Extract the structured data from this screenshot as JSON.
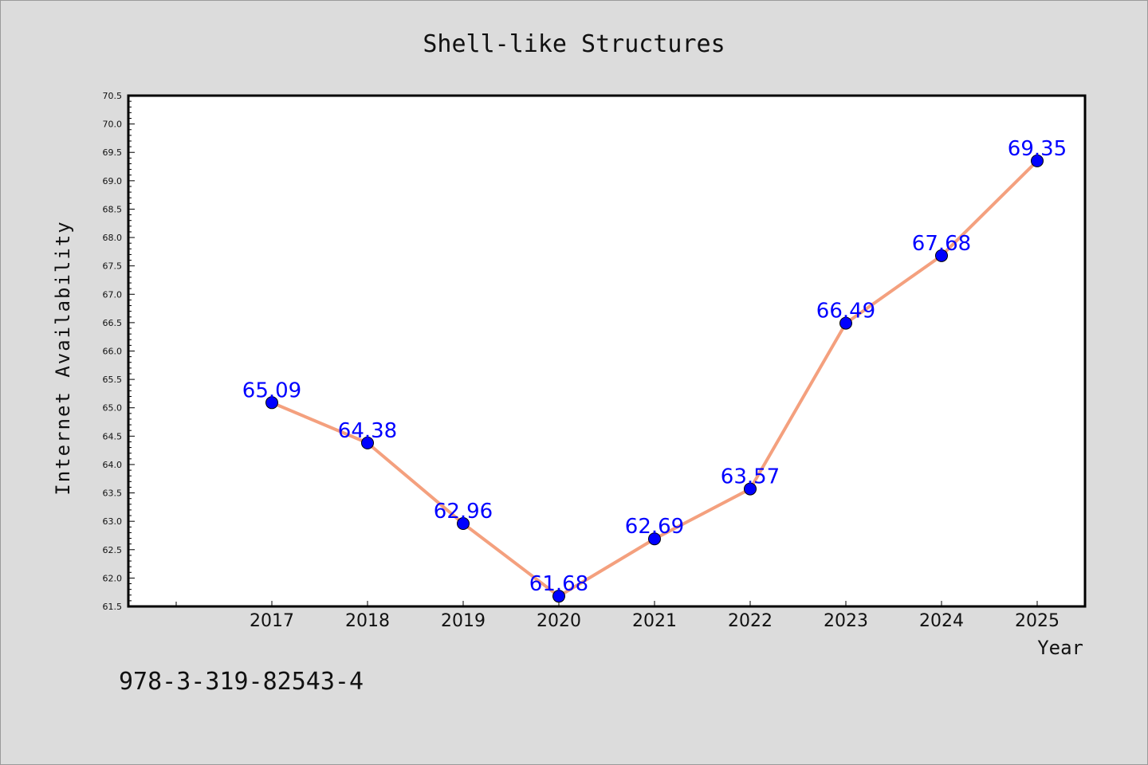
{
  "chart_data": {
    "type": "line",
    "title": "Shell-like Structures",
    "xlabel": "Year",
    "ylabel": "Internet Availability",
    "categories": [
      "2017",
      "2018",
      "2019",
      "2020",
      "2021",
      "2022",
      "2023",
      "2024",
      "2025"
    ],
    "series": [
      {
        "values": [
          65.09,
          64.38,
          62.96,
          61.68,
          62.69,
          63.57,
          66.49,
          67.68,
          69.35
        ],
        "data_labels": [
          "65.09",
          "64.38",
          "62.96",
          "61.68",
          "62.69",
          "63.57",
          "66.49",
          "67.68",
          "69.35"
        ],
        "line_color": "#f4a07e",
        "marker_color": "#0000ff"
      }
    ],
    "ylim": [
      61.5,
      70.5
    ],
    "yticks": [
      "61.5",
      "62.0",
      "62.5",
      "63.0",
      "63.5",
      "64.0",
      "64.5",
      "65.0",
      "65.5",
      "66.0",
      "66.5",
      "67.0",
      "67.5",
      "68.0",
      "68.5",
      "69.0",
      "69.5",
      "70.0",
      "70.5"
    ],
    "grid": false,
    "legend": "none"
  },
  "footer": {
    "text": "978-3-319-82543-4"
  },
  "colors": {
    "background": "#dcdcdc",
    "plot_area": "#ffffff",
    "axes": "#000000"
  }
}
